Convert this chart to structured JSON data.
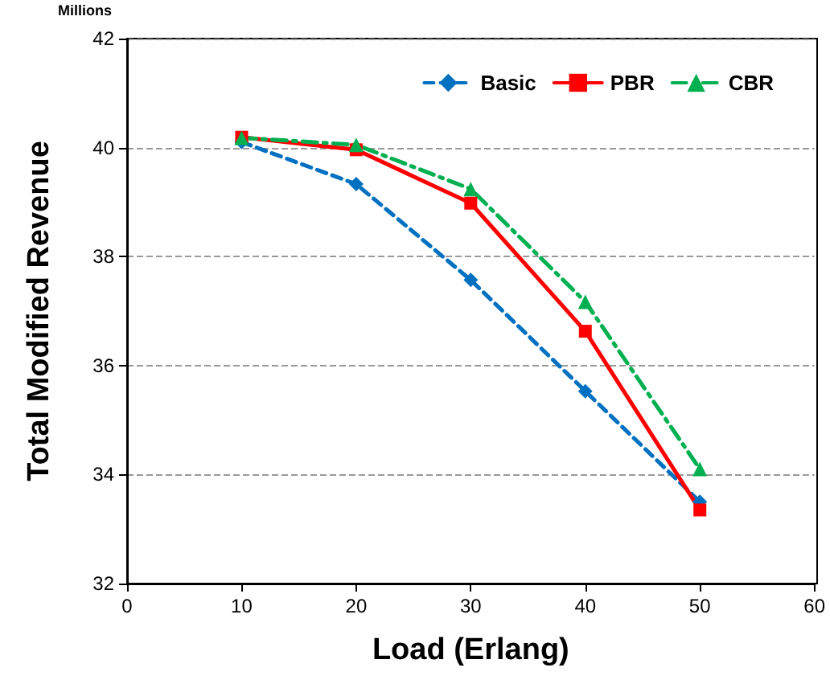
{
  "chart_data": {
    "type": "line",
    "xlabel": "Load (Erlang)",
    "ylabel": "Total Modified Revenue",
    "annotations": [
      "Millions"
    ],
    "x": [
      10,
      20,
      30,
      40,
      50
    ],
    "series": [
      {
        "name": "Basic",
        "color": "#0070c0",
        "values": [
          40.1,
          39.33,
          37.57,
          35.53,
          33.5
        ],
        "marker": "diamond",
        "line_style": "dashed"
      },
      {
        "name": "PBR",
        "color": "#ff0000",
        "values": [
          40.19,
          39.96,
          38.98,
          36.63,
          33.35
        ],
        "marker": "square",
        "line_style": "solid"
      },
      {
        "name": "CBR",
        "color": "#00b050",
        "values": [
          40.18,
          40.05,
          39.24,
          37.17,
          34.1
        ],
        "marker": "triangle",
        "line_style": "dashdot"
      }
    ],
    "xlim": [
      0,
      60
    ],
    "xticks": [
      0,
      10,
      20,
      30,
      40,
      50,
      60
    ],
    "ylim": [
      32,
      42
    ],
    "yticks": [
      32,
      34,
      36,
      38,
      40,
      42
    ],
    "grid": "y",
    "legend": "top right"
  }
}
